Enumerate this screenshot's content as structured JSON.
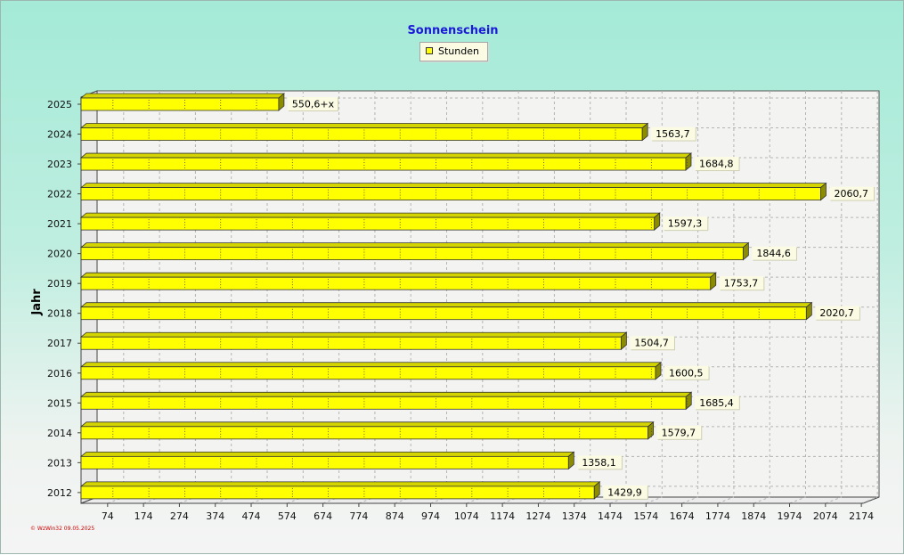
{
  "chart_data": {
    "type": "bar",
    "orientation": "horizontal",
    "title": "Sonnenschein",
    "ylabel": "Jahr",
    "xlabel": "",
    "legend": {
      "placement": "top-center",
      "entries": [
        "Stunden"
      ]
    },
    "categories": [
      "2025",
      "2024",
      "2023",
      "2022",
      "2021",
      "2020",
      "2019",
      "2018",
      "2017",
      "2016",
      "2015",
      "2014",
      "2013",
      "2012"
    ],
    "series": [
      {
        "name": "Stunden",
        "values": [
          550.6,
          1563.7,
          1684.8,
          2060.7,
          1597.3,
          1844.6,
          1753.7,
          2020.7,
          1504.7,
          1600.5,
          1685.4,
          1579.7,
          1358.1,
          1429.9
        ],
        "labels": [
          "550,6+x",
          "1563,7",
          "1684,8",
          "2060,7",
          "1597,3",
          "1844,6",
          "1753,7",
          "2020,7",
          "1504,7",
          "1600,5",
          "1685,4",
          "1579,7",
          "1358,1",
          "1429,9"
        ]
      }
    ],
    "x_ticks": [
      74,
      174,
      274,
      374,
      474,
      574,
      674,
      774,
      874,
      974,
      1074,
      1174,
      1274,
      1374,
      1474,
      1574,
      1674,
      1774,
      1874,
      1974,
      2074,
      2174
    ],
    "xlim": [
      0,
      2200
    ],
    "grid": true,
    "colors": {
      "bar": "#ffff00",
      "bar_top": "#d4d400",
      "bar_side": "#8c8c00",
      "label_bg": "#fbfbe4"
    }
  },
  "watermark": "© WzWin32 09.05.2025"
}
